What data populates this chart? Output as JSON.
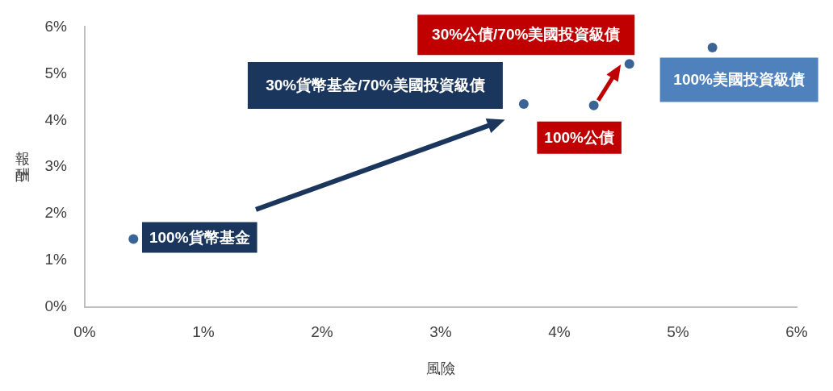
{
  "chart_data": {
    "type": "scatter",
    "xlabel": "風險",
    "ylabel": "報酬",
    "x": [
      0.41,
      3.7,
      4.29,
      4.59,
      5.29
    ],
    "series": [
      {
        "color": "#3a6496",
        "values": [
          1.46,
          4.35,
          4.32,
          5.21,
          5.56
        ]
      }
    ],
    "xlim": [
      0,
      6
    ],
    "ylim": [
      0,
      6
    ],
    "xticks": [
      {
        "value": 0,
        "label": "0%"
      },
      {
        "value": 1,
        "label": "1%"
      },
      {
        "value": 2,
        "label": "2%"
      },
      {
        "value": 3,
        "label": "3%"
      },
      {
        "value": 4,
        "label": "4%"
      },
      {
        "value": 5,
        "label": "5%"
      },
      {
        "value": 6,
        "label": "6%"
      }
    ],
    "yticks": [
      {
        "value": 0,
        "label": "0%"
      },
      {
        "value": 1,
        "label": "1%"
      },
      {
        "value": 2,
        "label": "2%"
      },
      {
        "value": 3,
        "label": "3%"
      },
      {
        "value": 4,
        "label": "4%"
      },
      {
        "value": 5,
        "label": "5%"
      },
      {
        "value": 6,
        "label": "6%"
      }
    ],
    "marker": "circle",
    "grid": false,
    "legend": false,
    "annotations": [
      {
        "text": "100%貨幣基金",
        "x": 0.41,
        "y": 1.46
      },
      {
        "text": "30%貨幣基金/70%美國投資級債",
        "x": 3.7,
        "y": 4.35
      },
      {
        "text": "100%公債",
        "x": 4.29,
        "y": 4.32
      },
      {
        "text": "30%公債/70%美國投資級債",
        "x": 4.59,
        "y": 5.21
      },
      {
        "text": "100%美國投資級債",
        "x": 5.29,
        "y": 5.56
      }
    ]
  }
}
